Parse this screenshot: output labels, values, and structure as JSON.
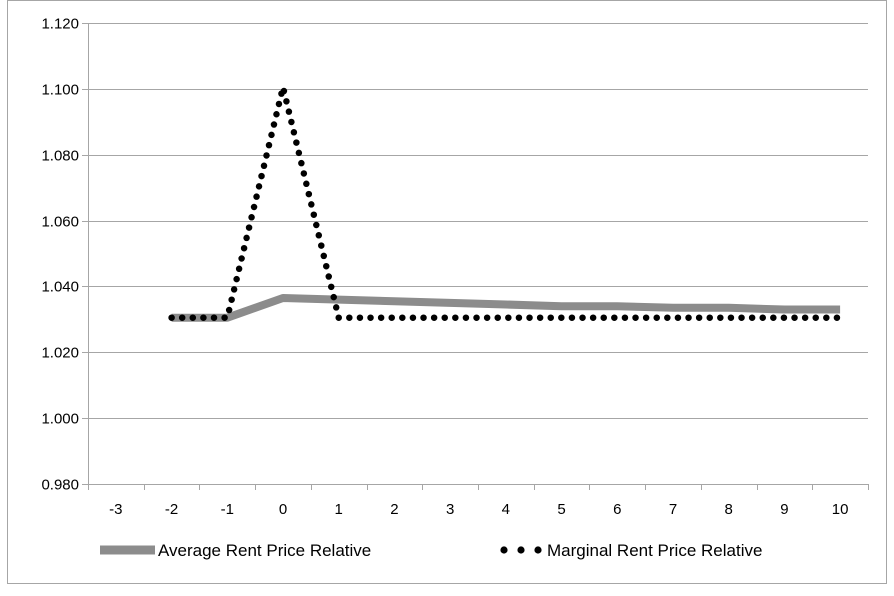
{
  "chart_data": {
    "type": "line",
    "title": "",
    "xlabel": "",
    "ylabel": "",
    "x_ticks": [
      "-3",
      "-2",
      "-1",
      "0",
      "1",
      "2",
      "3",
      "4",
      "5",
      "6",
      "7",
      "8",
      "9",
      "10"
    ],
    "y_ticks": [
      "0.980",
      "1.000",
      "1.020",
      "1.040",
      "1.060",
      "1.080",
      "1.100",
      "1.120"
    ],
    "xlim": [
      -3.5,
      10.5
    ],
    "ylim": [
      0.98,
      1.12
    ],
    "grid": true,
    "legend_position": "bottom",
    "series": [
      {
        "name": "Average Rent Price Relative",
        "style": "solid",
        "color": "#8c8c8c",
        "x": [
          -2,
          -1,
          0,
          1,
          2,
          3,
          4,
          5,
          6,
          7,
          8,
          9,
          10
        ],
        "y": [
          1.0305,
          1.0305,
          1.0365,
          1.036,
          1.0355,
          1.035,
          1.0345,
          1.034,
          1.034,
          1.0335,
          1.0335,
          1.033,
          1.033
        ]
      },
      {
        "name": "Marginal Rent Price Relative",
        "style": "dotted",
        "color": "#000000",
        "x": [
          -2,
          -1,
          0,
          1,
          2,
          3,
          4,
          5,
          6,
          7,
          8,
          9,
          10
        ],
        "y": [
          1.0305,
          1.0305,
          1.1005,
          1.0305,
          1.0305,
          1.0305,
          1.0305,
          1.0305,
          1.0305,
          1.0305,
          1.0305,
          1.0305,
          1.0305
        ]
      }
    ]
  }
}
